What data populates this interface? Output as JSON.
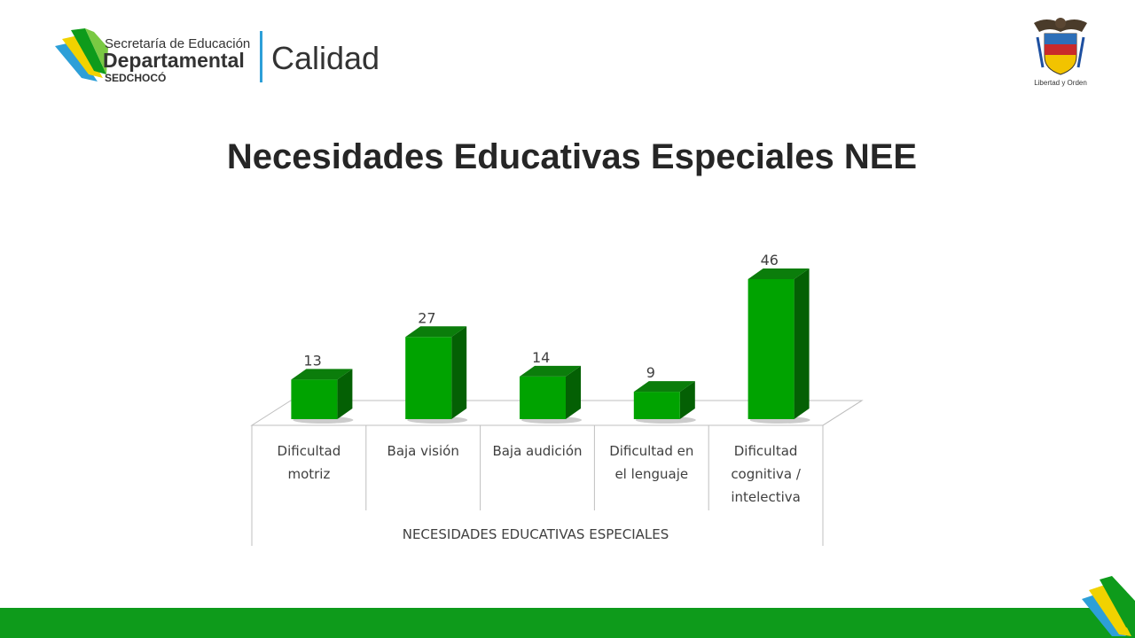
{
  "header": {
    "logo_line1": "Secretaría de Educación",
    "logo_line2": "Departamental",
    "logo_line3": "SEDCHOCÓ",
    "logo_brand": "Calidad",
    "crest_motto": "Libertad y Orden"
  },
  "title": "Necesidades Educativas Especiales NEE",
  "colors": {
    "bar_front": "#00a300",
    "bar_top": "#0b7d0b",
    "bar_side": "#046004",
    "brand_green": "#0e9b1b",
    "brand_yellow": "#f1d200",
    "brand_blue": "#2d9fd8"
  },
  "chart_data": {
    "type": "bar",
    "style": "3d-column",
    "categories": [
      [
        "Dificultad",
        "motriz"
      ],
      [
        "Baja visión"
      ],
      [
        "Baja audición"
      ],
      [
        "Dificultad en",
        "el lenguaje"
      ],
      [
        "Dificultad",
        "cognitiva /",
        "intelectiva"
      ]
    ],
    "values": [
      13,
      27,
      14,
      9,
      46
    ],
    "data_labels": [
      "13",
      "27",
      "14",
      "9",
      "46"
    ],
    "group_label": "NECESIDADES EDUCATIVAS ESPECIALES",
    "ylim": [
      0,
      46
    ],
    "legend": "none",
    "grid": false
  }
}
